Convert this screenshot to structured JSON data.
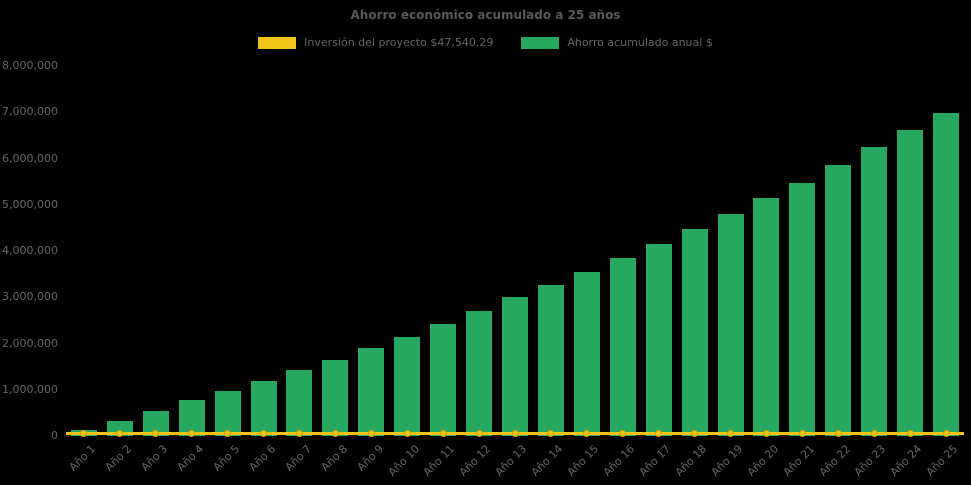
{
  "chart_data": {
    "type": "bar",
    "title": "Ahorro económico acumulado a 25 años",
    "categories": [
      "Año 1",
      "Año 2",
      "Año 3",
      "Año 4",
      "Año 5",
      "Año 6",
      "Año 7",
      "Año 8",
      "Año 9",
      "Año 10",
      "Año 11",
      "Año 12",
      "Año 13",
      "Año 14",
      "Año 15",
      "Año 16",
      "Año 17",
      "Año 18",
      "Año 19",
      "Año 20",
      "Año 21",
      "Año 22",
      "Año 23",
      "Año 24",
      "Año 25"
    ],
    "series": [
      {
        "name": "Inversión del proyecto $47,540.29",
        "type": "line",
        "color": "#f0c419",
        "point_border_color": "#d9a400",
        "value": 47540.29
      },
      {
        "name": "Ahorro acumulado anual $",
        "type": "bar",
        "color": "#26a860",
        "values": [
          120000,
          330000,
          550000,
          770000,
          980000,
          1200000,
          1420000,
          1650000,
          1900000,
          2130000,
          2430000,
          2700000,
          3000000,
          3270000,
          3550000,
          3850000,
          4150000,
          4470000,
          4800000,
          5150000,
          5480000,
          5850000,
          6250000,
          6620000,
          6980000
        ]
      }
    ],
    "ylim": [
      0,
      8000000
    ],
    "ytick_step": 1000000,
    "ytick_labels": [
      "0",
      "1,000,000",
      "2,000,000",
      "3,000,000",
      "4,000,000",
      "5,000,000",
      "6,000,000",
      "7,000,000",
      "8,000,000"
    ],
    "grid": false,
    "legend_position": "top",
    "x_label_rotation": -45,
    "background": "#000000",
    "text_color": "#666666"
  }
}
